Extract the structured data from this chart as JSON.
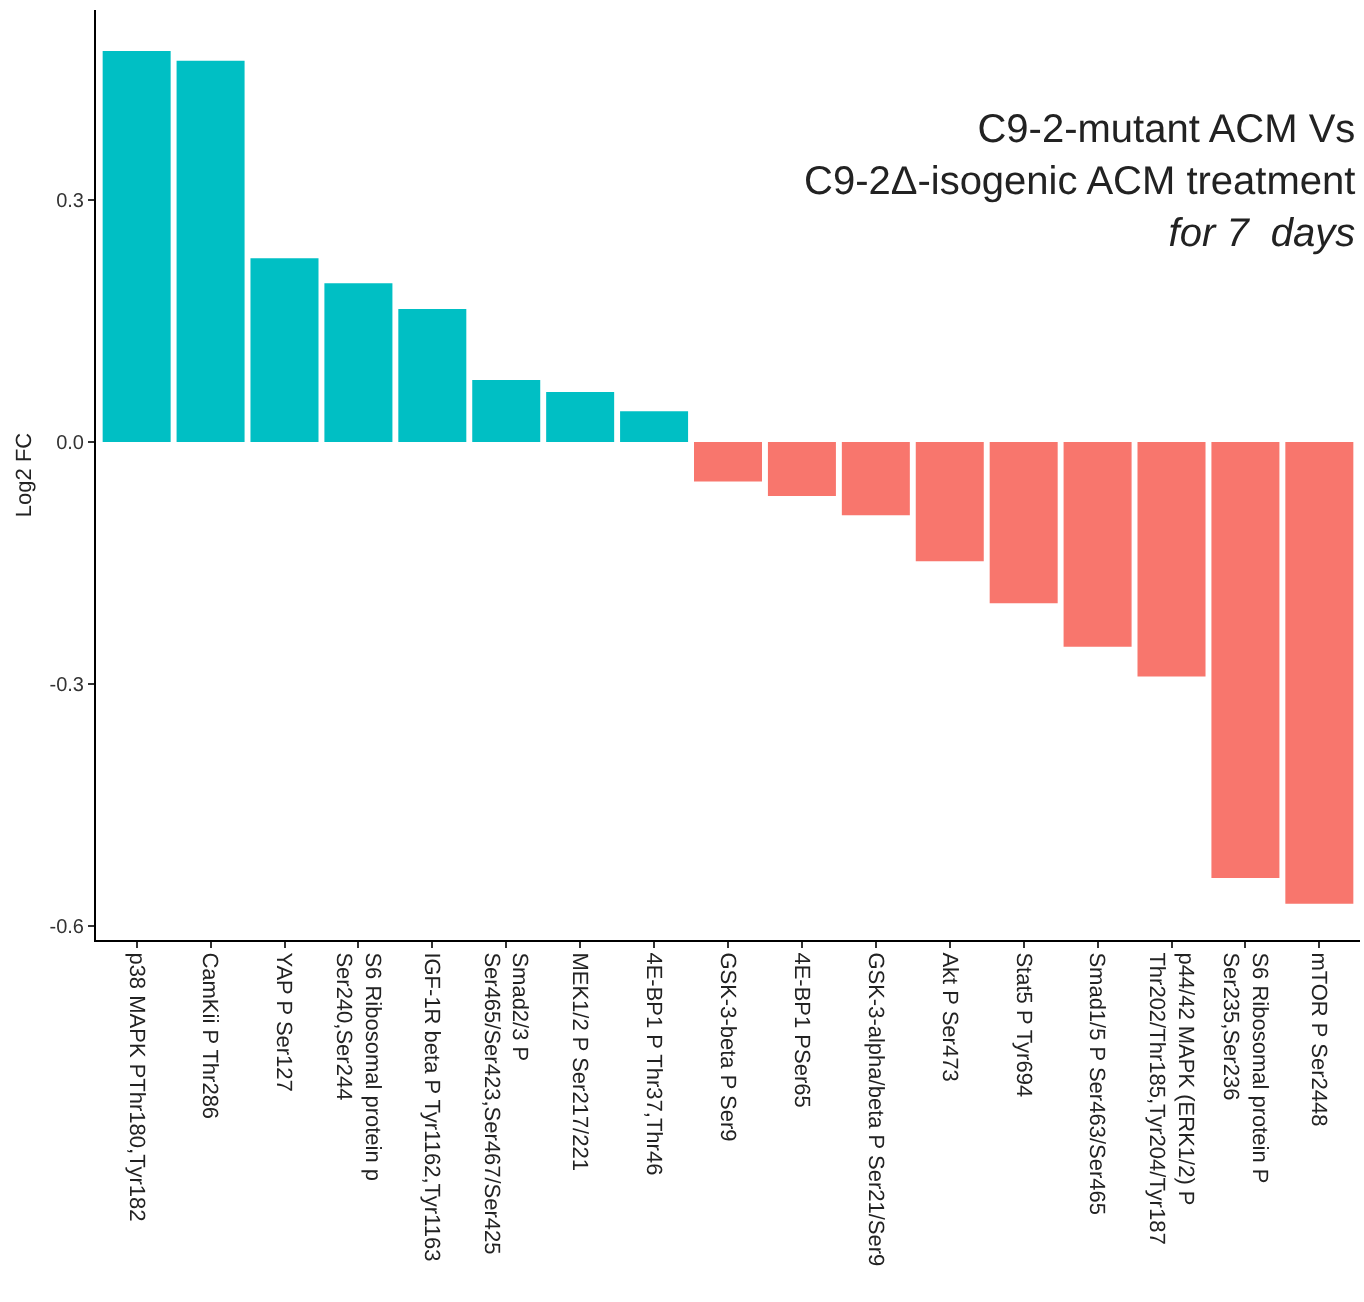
{
  "chart_data": {
    "type": "bar",
    "title": "C9-2-mutant ACM Vs\nC9-2Δ-isogenic ACM treatment\nfor 7  days",
    "ylabel": "Log2 FC",
    "categories": [
      "p38 MAPK PThr180,Tyr182",
      "CamKii P Thr286",
      "YAP P Ser127",
      "S6 Ribosomal protein p\nSer240,Ser244",
      "IGF-1R beta P Tyr1162,Tyr1163",
      "Smad2/3 P\nSer465/Ser423,Ser467/Ser425",
      "MEK1/2 P Ser217/221",
      "4E-BP1 P Thr37,Thr46",
      "GSK-3-beta P Ser9",
      "4E-BP1 PSer65",
      "GSK-3-alpha/beta P Ser21/Ser9",
      "Akt P Ser473",
      "Stat5 P Tyr694",
      "Smad1/5 P Ser463/Ser465",
      "p44/42 MAPK (ERK1/2) P\nThr202/Thr185,Tyr204/Tyr187",
      "S6 Ribosomal protein P\nSer235,Ser236",
      "mTOR P Ser2448"
    ],
    "values": [
      0.485,
      0.473,
      0.228,
      0.197,
      0.165,
      0.077,
      0.062,
      0.038,
      -0.049,
      -0.067,
      -0.091,
      -0.148,
      -0.2,
      -0.254,
      -0.291,
      -0.541,
      -0.573
    ],
    "colors": [
      "#00bfc4",
      "#00bfc4",
      "#00bfc4",
      "#00bfc4",
      "#00bfc4",
      "#00bfc4",
      "#00bfc4",
      "#00bfc4",
      "#f8766d",
      "#f8766d",
      "#f8766d",
      "#f8766d",
      "#f8766d",
      "#f8766d",
      "#f8766d",
      "#f8766d",
      "#f8766d"
    ],
    "ylim": [
      -0.618,
      0.536
    ],
    "yticks": [
      {
        "value": 0.3,
        "label": "0.3"
      },
      {
        "value": 0,
        "label": "0.0"
      },
      {
        "value": -0.3,
        "label": "-0.3"
      },
      {
        "value": -0.6,
        "label": "-0.6"
      }
    ],
    "grid": false
  }
}
